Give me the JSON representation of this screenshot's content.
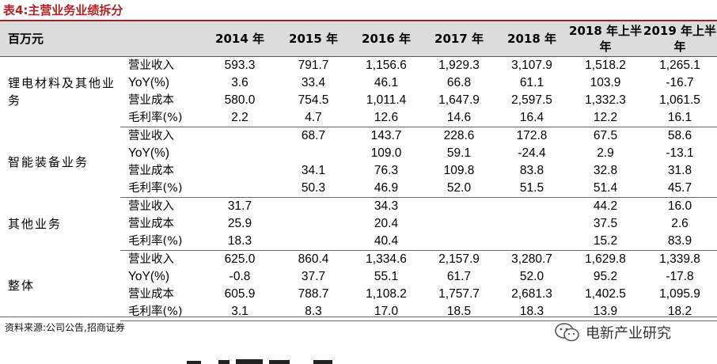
{
  "title": "表4:主营业务业绩拆分",
  "header": {
    "corner": "百万元",
    "columns": [
      "2014 年",
      "2015 年",
      "2016 年",
      "2017 年",
      "2018 年",
      "2018 年上半年",
      "2019 年上半年"
    ]
  },
  "groups": [
    {
      "name": "锂电材料及其他业务",
      "rows": [
        {
          "metric": "营业收入",
          "values": [
            "593.3",
            "791.7",
            "1,156.6",
            "1,929.3",
            "3,107.9",
            "1,518.2",
            "1,265.1"
          ]
        },
        {
          "metric": "YoY(%)",
          "values": [
            "3.6",
            "33.4",
            "46.1",
            "66.8",
            "61.1",
            "103.9",
            "-16.7"
          ]
        },
        {
          "metric": "营业成本",
          "values": [
            "580.0",
            "754.5",
            "1,011.4",
            "1,647.9",
            "2,597.5",
            "1,332.3",
            "1,061.5"
          ]
        },
        {
          "metric": "毛利率(%)",
          "values": [
            "2.2",
            "4.7",
            "12.6",
            "14.6",
            "16.4",
            "12.2",
            "16.1"
          ]
        }
      ]
    },
    {
      "name": "智能装备业务",
      "rows": [
        {
          "metric": "营业收入",
          "values": [
            "",
            "68.7",
            "143.7",
            "228.6",
            "172.8",
            "67.5",
            "58.6"
          ]
        },
        {
          "metric": "YoY(%)",
          "values": [
            "",
            "",
            "109.0",
            "59.1",
            "-24.4",
            "2.9",
            "-13.1"
          ]
        },
        {
          "metric": "营业成本",
          "values": [
            "",
            "34.1",
            "76.3",
            "109.8",
            "83.8",
            "32.8",
            "31.8"
          ]
        },
        {
          "metric": "毛利率(%)",
          "values": [
            "",
            "50.3",
            "46.9",
            "52.0",
            "51.5",
            "51.4",
            "45.7"
          ]
        }
      ]
    },
    {
      "name": "其他业务",
      "rows": [
        {
          "metric": "营业收入",
          "values": [
            "31.7",
            "",
            "34.3",
            "",
            "",
            "44.2",
            "16.0"
          ]
        },
        {
          "metric": "营业成本",
          "values": [
            "25.9",
            "",
            "20.4",
            "",
            "",
            "37.5",
            "2.6"
          ]
        },
        {
          "metric": "毛利率(%)",
          "values": [
            "18.3",
            "",
            "40.4",
            "",
            "",
            "15.2",
            "83.9"
          ]
        }
      ]
    },
    {
      "name": "整体",
      "rows": [
        {
          "metric": "营业收入",
          "values": [
            "625.0",
            "860.4",
            "1,334.6",
            "2,157.9",
            "3,280.7",
            "1,629.8",
            "1,339.8"
          ]
        },
        {
          "metric": "YoY(%)",
          "values": [
            "-0.8",
            "37.7",
            "55.1",
            "61.7",
            "52.0",
            "95.2",
            "-17.8"
          ]
        },
        {
          "metric": "营业成本",
          "values": [
            "605.9",
            "788.7",
            "1,108.2",
            "1,757.7",
            "2,681.3",
            "1,402.5",
            "1,095.9"
          ]
        },
        {
          "metric": "毛利率(%)",
          "values": [
            "3.1",
            "8.3",
            "17.0",
            "18.5",
            "18.3",
            "13.9",
            "18.2"
          ]
        }
      ]
    }
  ],
  "source": "资料来源:公司公告,招商证券",
  "watermark": {
    "text": "电新产业研究",
    "icon": "wechat-icon"
  },
  "colors": {
    "title": "#b22222",
    "header_bg": "#dcdcdc",
    "rule": "#a0202a"
  }
}
